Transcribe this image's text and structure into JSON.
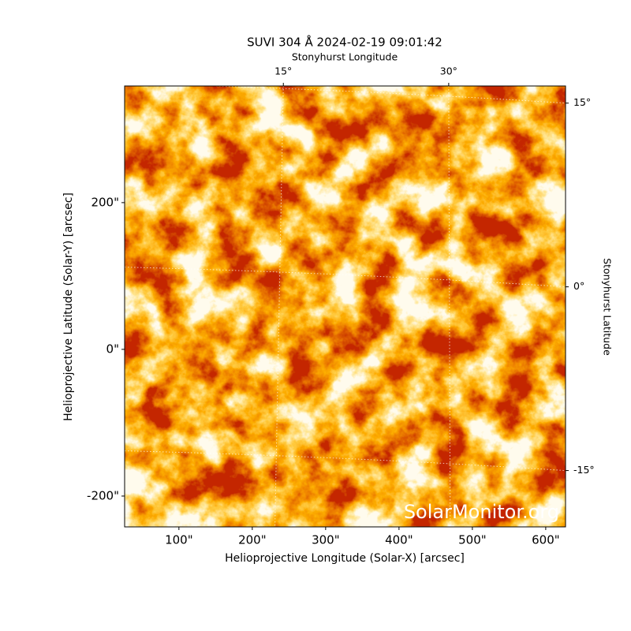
{
  "chart_data": {
    "type": "image",
    "title": "SUVI 304 Å 2024-02-19 09:01:42",
    "xlabel": "Helioprojective Longitude (Solar-X) [arcsec]",
    "ylabel": "Helioprojective Latitude (Solar-Y) [arcsec]",
    "x2label": "Stonyhurst Longitude",
    "y2label": "Stonyhurst Latitude",
    "annotation": "SolarMonitor.org",
    "xlim": [
      26,
      627
    ],
    "ylim": [
      -242,
      359
    ],
    "xticks": [
      {
        "value": 100,
        "label": "100\""
      },
      {
        "value": 200,
        "label": "200\""
      },
      {
        "value": 300,
        "label": "300\""
      },
      {
        "value": 400,
        "label": "400\""
      },
      {
        "value": 500,
        "label": "500\""
      },
      {
        "value": 600,
        "label": "600\""
      }
    ],
    "yticks": [
      {
        "value": -200,
        "label": "-200\""
      },
      {
        "value": 0,
        "label": "0\""
      },
      {
        "value": 200,
        "label": "200\""
      }
    ],
    "x2lim": [
      0.6,
      40.6
    ],
    "x2ticks": [
      {
        "value": 15,
        "label": "15°"
      },
      {
        "value": 30,
        "label": "30°"
      }
    ],
    "y2lim": [
      -19.6,
      16.4
    ],
    "y2ticks": [
      {
        "value": -15,
        "label": "-15°"
      },
      {
        "value": 0,
        "label": "0°"
      },
      {
        "value": 15,
        "label": "15°"
      }
    ],
    "grid": true
  }
}
